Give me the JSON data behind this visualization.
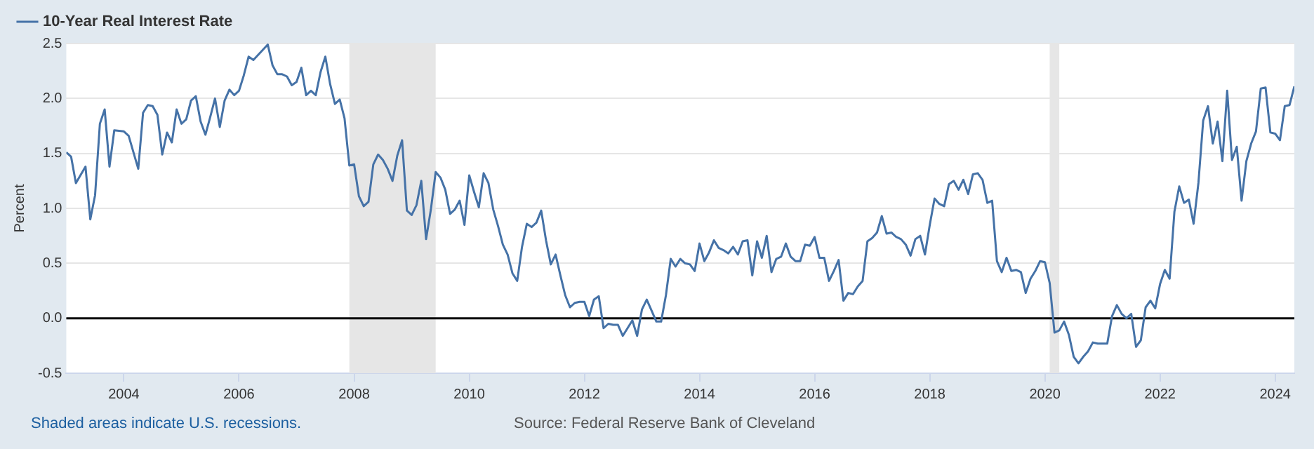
{
  "chart_data": {
    "type": "line",
    "ylabel": "Percent",
    "x": [
      "2003-01",
      "2003-02",
      "2003-03",
      "2003-05",
      "2003-06",
      "2003-07",
      "2003-08",
      "2003-09",
      "2003-10",
      "2003-11",
      "2004-01",
      "2004-02",
      "2004-04",
      "2004-05",
      "2004-06",
      "2004-07",
      "2004-08",
      "2004-09",
      "2004-10",
      "2004-11",
      "2004-12",
      "2005-01",
      "2005-02",
      "2005-03",
      "2005-04",
      "2005-05",
      "2005-06",
      "2005-07",
      "2005-08",
      "2005-09",
      "2005-10",
      "2005-11",
      "2005-12",
      "2006-01",
      "2006-02",
      "2006-03",
      "2006-04",
      "2006-07",
      "2006-08",
      "2006-09",
      "2006-10",
      "2006-11",
      "2006-12",
      "2007-01",
      "2007-02",
      "2007-03",
      "2007-04",
      "2007-05",
      "2007-06",
      "2007-07",
      "2007-08",
      "2007-09",
      "2007-10",
      "2007-11",
      "2007-12",
      "2008-01",
      "2008-02",
      "2008-03",
      "2008-04",
      "2008-05",
      "2008-06",
      "2008-07",
      "2008-08",
      "2008-09",
      "2008-10",
      "2008-11",
      "2008-12",
      "2009-01",
      "2009-02",
      "2009-03",
      "2009-04",
      "2009-05",
      "2009-06",
      "2009-07",
      "2009-08",
      "2009-09",
      "2009-10",
      "2009-11",
      "2009-12",
      "2010-01",
      "2010-02",
      "2010-03",
      "2010-04",
      "2010-05",
      "2010-06",
      "2010-07",
      "2010-08",
      "2010-09",
      "2010-10",
      "2010-11",
      "2010-12",
      "2011-01",
      "2011-02",
      "2011-03",
      "2011-04",
      "2011-05",
      "2011-06",
      "2011-07",
      "2011-08",
      "2011-09",
      "2011-10",
      "2011-11",
      "2011-12",
      "2012-01",
      "2012-02",
      "2012-03",
      "2012-04",
      "2012-05",
      "2012-06",
      "2012-07",
      "2012-08",
      "2012-09",
      "2012-10",
      "2012-11",
      "2012-12",
      "2013-01",
      "2013-02",
      "2013-03",
      "2013-04",
      "2013-05",
      "2013-06",
      "2013-07",
      "2013-08",
      "2013-09",
      "2013-10",
      "2013-11",
      "2013-12",
      "2014-01",
      "2014-02",
      "2014-03",
      "2014-04",
      "2014-05",
      "2014-06",
      "2014-07",
      "2014-08",
      "2014-09",
      "2014-10",
      "2014-11",
      "2014-12",
      "2015-01",
      "2015-02",
      "2015-03",
      "2015-04",
      "2015-05",
      "2015-06",
      "2015-07",
      "2015-08",
      "2015-09",
      "2015-10",
      "2015-11",
      "2015-12",
      "2016-01",
      "2016-02",
      "2016-03",
      "2016-04",
      "2016-05",
      "2016-06",
      "2016-07",
      "2016-08",
      "2016-09",
      "2016-10",
      "2016-11",
      "2016-12",
      "2017-01",
      "2017-02",
      "2017-03",
      "2017-04",
      "2017-05",
      "2017-06",
      "2017-07",
      "2017-08",
      "2017-09",
      "2017-10",
      "2017-11",
      "2017-12",
      "2018-01",
      "2018-02",
      "2018-03",
      "2018-04",
      "2018-05",
      "2018-06",
      "2018-07",
      "2018-08",
      "2018-09",
      "2018-10",
      "2018-11",
      "2018-12",
      "2019-01",
      "2019-02",
      "2019-03",
      "2019-04",
      "2019-05",
      "2019-06",
      "2019-07",
      "2019-08",
      "2019-09",
      "2019-10",
      "2019-11",
      "2019-12",
      "2020-01",
      "2020-02",
      "2020-03",
      "2020-04",
      "2020-05",
      "2020-06",
      "2020-07",
      "2020-08",
      "2020-09",
      "2020-10",
      "2020-11",
      "2020-12",
      "2021-01",
      "2021-02",
      "2021-03",
      "2021-04",
      "2021-05",
      "2021-06",
      "2021-07",
      "2021-08",
      "2021-09",
      "2021-10",
      "2021-11",
      "2021-12",
      "2022-01",
      "2022-02",
      "2022-03",
      "2022-04",
      "2022-05",
      "2022-06",
      "2022-07",
      "2022-08",
      "2022-09",
      "2022-10",
      "2022-11",
      "2022-12",
      "2023-01",
      "2023-02",
      "2023-03",
      "2023-04",
      "2023-05",
      "2023-06",
      "2023-07",
      "2023-08",
      "2023-09",
      "2023-10",
      "2023-11",
      "2023-12",
      "2024-01",
      "2024-02",
      "2024-03",
      "2024-04",
      "2024-05"
    ],
    "series": [
      {
        "name": "10-Year Real Interest Rate",
        "color": "#4572a7",
        "values": [
          1.51,
          1.47,
          1.23,
          1.38,
          0.9,
          1.12,
          1.77,
          1.9,
          1.38,
          1.71,
          1.7,
          1.66,
          1.36,
          1.87,
          1.94,
          1.93,
          1.85,
          1.49,
          1.69,
          1.6,
          1.9,
          1.77,
          1.81,
          1.98,
          2.02,
          1.79,
          1.67,
          1.83,
          2.0,
          1.74,
          1.98,
          2.08,
          2.03,
          2.07,
          2.21,
          2.38,
          2.35,
          2.49,
          2.3,
          2.22,
          2.22,
          2.2,
          2.12,
          2.15,
          2.28,
          2.03,
          2.07,
          2.03,
          2.24,
          2.38,
          2.13,
          1.95,
          1.99,
          1.82,
          1.39,
          1.4,
          1.11,
          1.02,
          1.06,
          1.4,
          1.49,
          1.44,
          1.36,
          1.25,
          1.48,
          1.62,
          0.98,
          0.94,
          1.03,
          1.25,
          0.72,
          0.99,
          1.33,
          1.28,
          1.17,
          0.95,
          0.99,
          1.07,
          0.85,
          1.3,
          1.15,
          1.01,
          1.32,
          1.23,
          0.99,
          0.84,
          0.67,
          0.58,
          0.41,
          0.34,
          0.65,
          0.86,
          0.83,
          0.87,
          0.98,
          0.71,
          0.49,
          0.58,
          0.39,
          0.21,
          0.1,
          0.14,
          0.15,
          0.15,
          0.02,
          0.17,
          0.2,
          -0.09,
          -0.05,
          -0.06,
          -0.06,
          -0.16,
          -0.09,
          -0.02,
          -0.16,
          0.08,
          0.17,
          0.07,
          -0.03,
          -0.03,
          0.21,
          0.54,
          0.47,
          0.54,
          0.5,
          0.49,
          0.43,
          0.68,
          0.52,
          0.6,
          0.71,
          0.64,
          0.62,
          0.59,
          0.65,
          0.58,
          0.7,
          0.71,
          0.39,
          0.7,
          0.55,
          0.75,
          0.42,
          0.54,
          0.56,
          0.68,
          0.56,
          0.52,
          0.52,
          0.67,
          0.66,
          0.74,
          0.55,
          0.55,
          0.34,
          0.43,
          0.53,
          0.16,
          0.23,
          0.22,
          0.29,
          0.34,
          0.7,
          0.73,
          0.78,
          0.93,
          0.77,
          0.78,
          0.74,
          0.72,
          0.67,
          0.57,
          0.72,
          0.75,
          0.58,
          0.85,
          1.09,
          1.04,
          1.02,
          1.22,
          1.25,
          1.17,
          1.26,
          1.13,
          1.31,
          1.32,
          1.26,
          1.05,
          1.07,
          0.52,
          0.42,
          0.55,
          0.43,
          0.44,
          0.42,
          0.23,
          0.36,
          0.43,
          0.52,
          0.51,
          0.32,
          -0.13,
          -0.11,
          -0.03,
          -0.15,
          -0.35,
          -0.41,
          -0.35,
          -0.3,
          -0.22,
          -0.23,
          -0.23,
          -0.23,
          0.02,
          0.12,
          0.04,
          0.0,
          0.04,
          -0.26,
          -0.2,
          0.1,
          0.16,
          0.09,
          0.31,
          0.44,
          0.36,
          0.97,
          1.2,
          1.05,
          1.08,
          0.86,
          1.23,
          1.8,
          1.93,
          1.59,
          1.79,
          1.43,
          2.07,
          1.44,
          1.56,
          1.07,
          1.43,
          1.59,
          1.7,
          2.09,
          2.1,
          1.69,
          1.68,
          1.62,
          1.93,
          1.94,
          2.11
        ]
      }
    ],
    "xlim": [
      "2003-01",
      "2024-05"
    ],
    "xticks": [
      "2004",
      "2006",
      "2008",
      "2010",
      "2012",
      "2014",
      "2016",
      "2018",
      "2020",
      "2022",
      "2024"
    ],
    "ylim": [
      -0.5,
      2.5
    ],
    "yticks": [
      -0.5,
      {
        "value": 0,
        "label": "0.0"
      },
      0.5,
      {
        "value": 1,
        "label": "1.0"
      },
      1.5,
      {
        "value": 2,
        "label": "2.0"
      },
      2.5
    ],
    "grid": "y",
    "legend": "top left",
    "ref_lines": [
      {
        "axis": "y",
        "value": 0,
        "color": "#000000"
      }
    ],
    "bands": [
      {
        "axis": "x",
        "from": "2007-12",
        "to": "2009-06",
        "color": "#e6e6e6"
      },
      {
        "axis": "x",
        "from": "2020-02",
        "to": "2020-04",
        "color": "#e6e6e6"
      }
    ],
    "annotations": [
      "Shaded areas indicate U.S. recessions.",
      "Source: Federal Reserve Bank of Cleveland"
    ]
  }
}
